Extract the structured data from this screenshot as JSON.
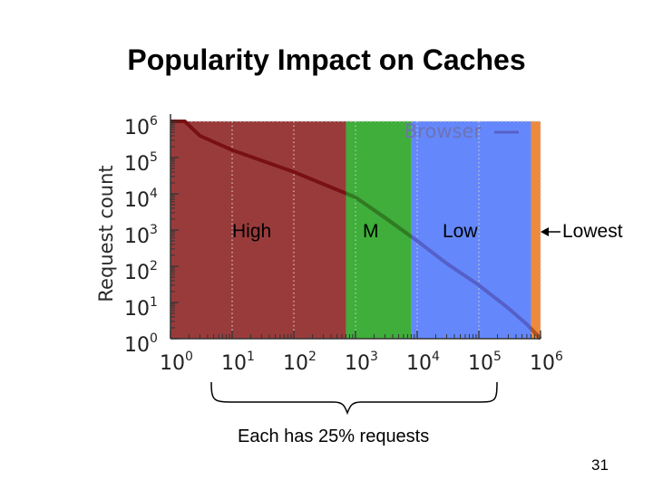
{
  "slide": {
    "title": "Popularity Impact on Caches",
    "caption": "Each has 25% requests",
    "page_number": "31"
  },
  "chart_data": {
    "type": "line",
    "title": "",
    "xlabel": "",
    "ylabel": "Request count",
    "x_scale": "log",
    "y_scale": "log",
    "xlim": [
      1,
      1000000
    ],
    "ylim": [
      1,
      1000000
    ],
    "x_ticks": [
      {
        "value": 1,
        "base": "10",
        "exp": "0"
      },
      {
        "value": 10,
        "base": "10",
        "exp": "1"
      },
      {
        "value": 100,
        "base": "10",
        "exp": "2"
      },
      {
        "value": 1000,
        "base": "10",
        "exp": "3"
      },
      {
        "value": 10000,
        "base": "10",
        "exp": "4"
      },
      {
        "value": 100000,
        "base": "10",
        "exp": "5"
      },
      {
        "value": 1000000,
        "base": "10",
        "exp": "6"
      }
    ],
    "y_ticks": [
      {
        "value": 1,
        "base": "10",
        "exp": "0"
      },
      {
        "value": 10,
        "base": "10",
        "exp": "1"
      },
      {
        "value": 100,
        "base": "10",
        "exp": "2"
      },
      {
        "value": 1000,
        "base": "10",
        "exp": "3"
      },
      {
        "value": 10000,
        "base": "10",
        "exp": "4"
      },
      {
        "value": 100000,
        "base": "10",
        "exp": "5"
      },
      {
        "value": 1000000,
        "base": "10",
        "exp": "6"
      }
    ],
    "legend": {
      "placement": "top-right",
      "entries": [
        "Browser"
      ]
    },
    "series": [
      {
        "name": "Browser",
        "color": "#5560c8",
        "points": [
          {
            "x": 1,
            "y": 1000000
          },
          {
            "x": 1.7,
            "y": 1000000
          },
          {
            "x": 3,
            "y": 400000
          },
          {
            "x": 10,
            "y": 160000
          },
          {
            "x": 100,
            "y": 40000
          },
          {
            "x": 1000,
            "y": 8000
          },
          {
            "x": 3000,
            "y": 2200
          },
          {
            "x": 10000,
            "y": 500
          },
          {
            "x": 30000,
            "y": 120
          },
          {
            "x": 100000,
            "y": 30
          },
          {
            "x": 300000,
            "y": 7
          },
          {
            "x": 600000,
            "y": 2.5
          },
          {
            "x": 1000000,
            "y": 1
          }
        ]
      }
    ],
    "regions": [
      {
        "name": "High",
        "label": "High",
        "x_start": 1,
        "x_end": 700,
        "color": "#9a3b3b"
      },
      {
        "name": "M",
        "label": "M",
        "x_start": 700,
        "x_end": 8000,
        "color": "#3fae3a"
      },
      {
        "name": "Low",
        "label": "Low",
        "x_start": 8000,
        "x_end": 700000,
        "color": "#6488fb"
      },
      {
        "name": "Lowest",
        "label": "Lowest",
        "x_start": 700000,
        "x_end": 1000000,
        "color": "#ee8a3e"
      }
    ],
    "grid": true
  }
}
